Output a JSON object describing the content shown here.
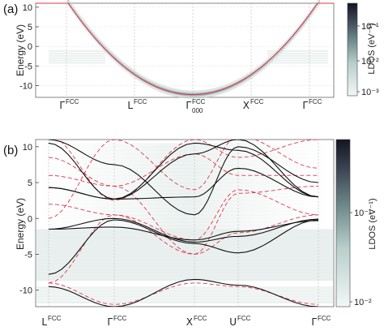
{
  "chart_data": [
    {
      "panel": "(a)",
      "type": "heatmap",
      "ylabel": "Energy (eV)",
      "ylim": [
        -13,
        11
      ],
      "yticks": [
        10,
        5,
        0,
        -5,
        -10
      ],
      "xticks": [
        {
          "sym": "Γ",
          "sup": "FCC",
          "sub": ""
        },
        {
          "sym": "L",
          "sup": "FCC",
          "sub": ""
        },
        {
          "sym": "Γ",
          "sup": "FCC",
          "sub": "000"
        },
        {
          "sym": "X",
          "sup": "FCC",
          "sub": ""
        },
        {
          "sym": "Γ",
          "sup": "FCC",
          "sub": ""
        }
      ],
      "colorbar": {
        "label": "LDOS (eV⁻¹)",
        "ticks": [
          "10⁻¹",
          "10⁻²",
          "10⁻³"
        ],
        "range": [
          0.001,
          1
        ],
        "scale": "log",
        "colors": [
          "#f2f7f6",
          "#b8cfcc",
          "#6f8a8a",
          "#3c4654",
          "#141420"
        ]
      },
      "overlay_color": "#e0364a",
      "overlay": {
        "name": "free-electron parabola",
        "min_energy": -12.3
      }
    },
    {
      "panel": "(b)",
      "type": "heatmap",
      "ylabel": "Energy (eV)",
      "ylim": [
        -12.3,
        11
      ],
      "yticks": [
        10,
        5,
        0,
        -5,
        -10
      ],
      "xticks": [
        {
          "sym": "L",
          "sup": "FCC",
          "sub": ""
        },
        {
          "sym": "Γ",
          "sup": "FCC",
          "sub": ""
        },
        {
          "sym": "X",
          "sup": "FCC",
          "sub": ""
        },
        {
          "sym": "U",
          "sup": "FCC",
          "sub": ""
        },
        {
          "sym": "Γ",
          "sup": "FCC",
          "sub": ""
        }
      ],
      "colorbar": {
        "label": "LDOS (eV⁻¹)",
        "ticks": [
          "10⁻¹",
          "10⁻²"
        ],
        "range": [
          0.01,
          1
        ],
        "scale": "log",
        "colors": [
          "#f2f7f6",
          "#b8cfcc",
          "#6f8a8a",
          "#3c4654",
          "#141420"
        ]
      },
      "band_color": "#111111",
      "empty_lattice_color": "#e0364a"
    }
  ]
}
